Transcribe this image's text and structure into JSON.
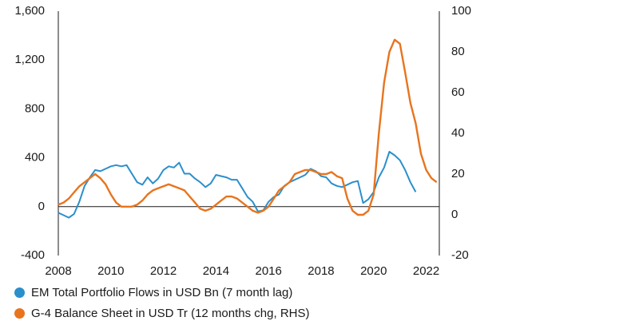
{
  "chart_data": {
    "type": "line",
    "x_ticks": [
      "2008",
      "2010",
      "2012",
      "2014",
      "2016",
      "2018",
      "2020",
      "2022"
    ],
    "xlim": [
      2008,
      2022.5
    ],
    "y_left_ticks": [
      "-400",
      "0",
      "400",
      "800",
      "1,200",
      "1,600"
    ],
    "ylim_left": [
      -400,
      1600
    ],
    "y_right_ticks": [
      "-20",
      "0",
      "20",
      "40",
      "60",
      "80",
      "100"
    ],
    "ylim_right": [
      -20,
      100
    ],
    "grid": false,
    "zero_line": true,
    "legend_position": "bottom-left",
    "series": [
      {
        "name": "EM Total Portfolio Flows in USD Bn (7 month lag)",
        "axis": "left",
        "color": "#2b8fcb",
        "x": [
          2008.0,
          2008.2,
          2008.4,
          2008.6,
          2008.8,
          2009.0,
          2009.2,
          2009.4,
          2009.6,
          2009.8,
          2010.0,
          2010.2,
          2010.4,
          2010.6,
          2010.8,
          2011.0,
          2011.2,
          2011.4,
          2011.6,
          2011.8,
          2012.0,
          2012.2,
          2012.4,
          2012.6,
          2012.8,
          2013.0,
          2013.2,
          2013.4,
          2013.6,
          2013.8,
          2014.0,
          2014.2,
          2014.4,
          2014.6,
          2014.8,
          2015.0,
          2015.2,
          2015.4,
          2015.6,
          2015.8,
          2016.0,
          2016.2,
          2016.4,
          2016.6,
          2016.8,
          2017.0,
          2017.2,
          2017.4,
          2017.6,
          2017.8,
          2018.0,
          2018.2,
          2018.4,
          2018.6,
          2018.8,
          2019.0,
          2019.2,
          2019.4,
          2019.6,
          2019.8,
          2020.0,
          2020.2,
          2020.4,
          2020.6,
          2020.8,
          2021.0,
          2021.2,
          2021.4,
          2021.6
        ],
        "values": [
          -50,
          -70,
          -90,
          -60,
          40,
          170,
          240,
          300,
          290,
          310,
          330,
          340,
          330,
          340,
          270,
          200,
          180,
          240,
          190,
          230,
          300,
          330,
          320,
          360,
          270,
          270,
          230,
          200,
          160,
          190,
          260,
          250,
          240,
          220,
          220,
          150,
          80,
          40,
          -40,
          -30,
          40,
          80,
          100,
          170,
          200,
          220,
          240,
          260,
          310,
          290,
          250,
          240,
          190,
          170,
          160,
          180,
          200,
          210,
          30,
          60,
          120,
          240,
          320,
          450,
          420,
          380,
          300,
          200,
          120
        ]
      },
      {
        "name": "G-4 Balance Sheet in USD Tr (12 months chg, RHS)",
        "axis": "right",
        "color": "#e8741e",
        "x": [
          2008.0,
          2008.2,
          2008.4,
          2008.6,
          2008.8,
          2009.0,
          2009.2,
          2009.4,
          2009.6,
          2009.8,
          2010.0,
          2010.2,
          2010.4,
          2010.6,
          2010.8,
          2011.0,
          2011.2,
          2011.4,
          2011.6,
          2011.8,
          2012.0,
          2012.2,
          2012.4,
          2012.6,
          2012.8,
          2013.0,
          2013.2,
          2013.4,
          2013.6,
          2013.8,
          2014.0,
          2014.2,
          2014.4,
          2014.6,
          2014.8,
          2015.0,
          2015.2,
          2015.4,
          2015.6,
          2015.8,
          2016.0,
          2016.2,
          2016.4,
          2016.6,
          2016.8,
          2017.0,
          2017.2,
          2017.4,
          2017.6,
          2017.8,
          2018.0,
          2018.2,
          2018.4,
          2018.6,
          2018.8,
          2019.0,
          2019.2,
          2019.4,
          2019.6,
          2019.8,
          2020.0,
          2020.2,
          2020.4,
          2020.6,
          2020.8,
          2021.0,
          2021.2,
          2021.4,
          2021.6,
          2021.8,
          2022.0,
          2022.2,
          2022.4
        ],
        "values": [
          5,
          6,
          8,
          11,
          14,
          16,
          18,
          20,
          18,
          15,
          10,
          6,
          4,
          4,
          4,
          5,
          7,
          10,
          12,
          13,
          14,
          15,
          14,
          13,
          12,
          9,
          6,
          3,
          2,
          3,
          5,
          7,
          9,
          9,
          8,
          6,
          4,
          2,
          1,
          2,
          4,
          8,
          12,
          14,
          16,
          20,
          21,
          22,
          22,
          21,
          20,
          20,
          21,
          19,
          18,
          8,
          2,
          0,
          0,
          2,
          10,
          40,
          65,
          80,
          86,
          84,
          70,
          55,
          45,
          30,
          22,
          18,
          16
        ]
      }
    ]
  }
}
